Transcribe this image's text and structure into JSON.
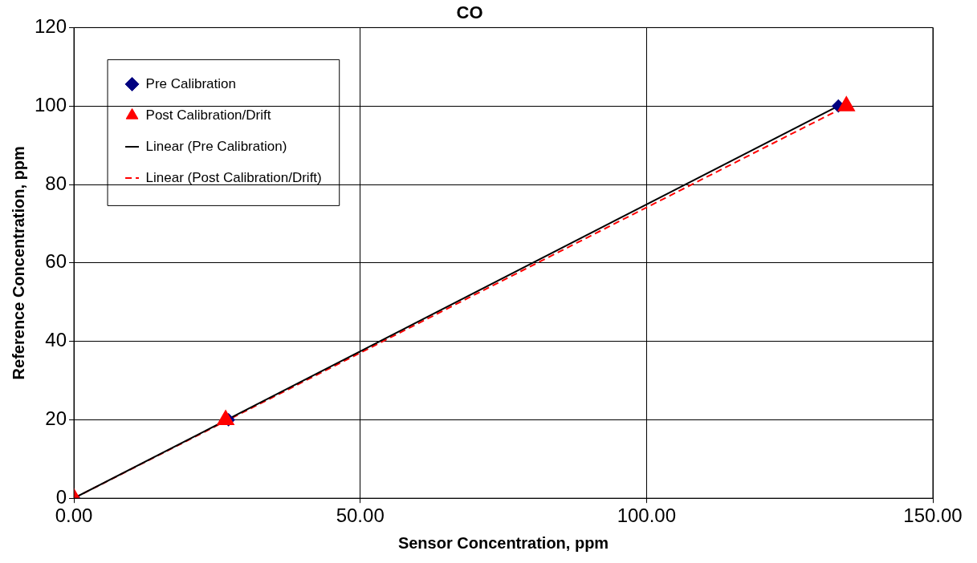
{
  "chart_data": {
    "type": "scatter",
    "title": "CO",
    "xlabel": "Sensor Concentration, ppm",
    "ylabel": "Reference Concentration, ppm",
    "xlim": [
      0,
      150
    ],
    "xticks": [
      {
        "value": 0,
        "label": "0.00"
      },
      {
        "value": 50,
        "label": "50.00"
      },
      {
        "value": 100,
        "label": "100.00"
      },
      {
        "value": 150,
        "label": "150.00"
      }
    ],
    "ylim": [
      0,
      120
    ],
    "yticks": [
      0,
      20,
      40,
      60,
      80,
      100,
      120
    ],
    "grid": true,
    "legend": "top left",
    "series": [
      {
        "name": "Pre Calibration",
        "marker": "diamond",
        "color": "#000080",
        "x": [
          0,
          27,
          133.5
        ],
        "values": [
          0,
          20,
          100
        ]
      },
      {
        "name": "Post Calibration/Drift",
        "marker": "triangle",
        "color": "#ff0000",
        "x": [
          0,
          26.5,
          134.9
        ],
        "values": [
          0,
          20,
          100
        ]
      },
      {
        "name": "Linear (Pre Calibration)",
        "type": "line",
        "marker": "none",
        "line_style": "solid",
        "color": "#000000",
        "x": [
          0,
          133.5
        ],
        "values": [
          0,
          100
        ]
      },
      {
        "name": "Linear (Post Calibration/Drift)",
        "type": "line",
        "marker": "none",
        "line_style": "dashed",
        "color": "#ff0000",
        "x": [
          0,
          134.9
        ],
        "values": [
          0,
          100
        ]
      }
    ]
  }
}
